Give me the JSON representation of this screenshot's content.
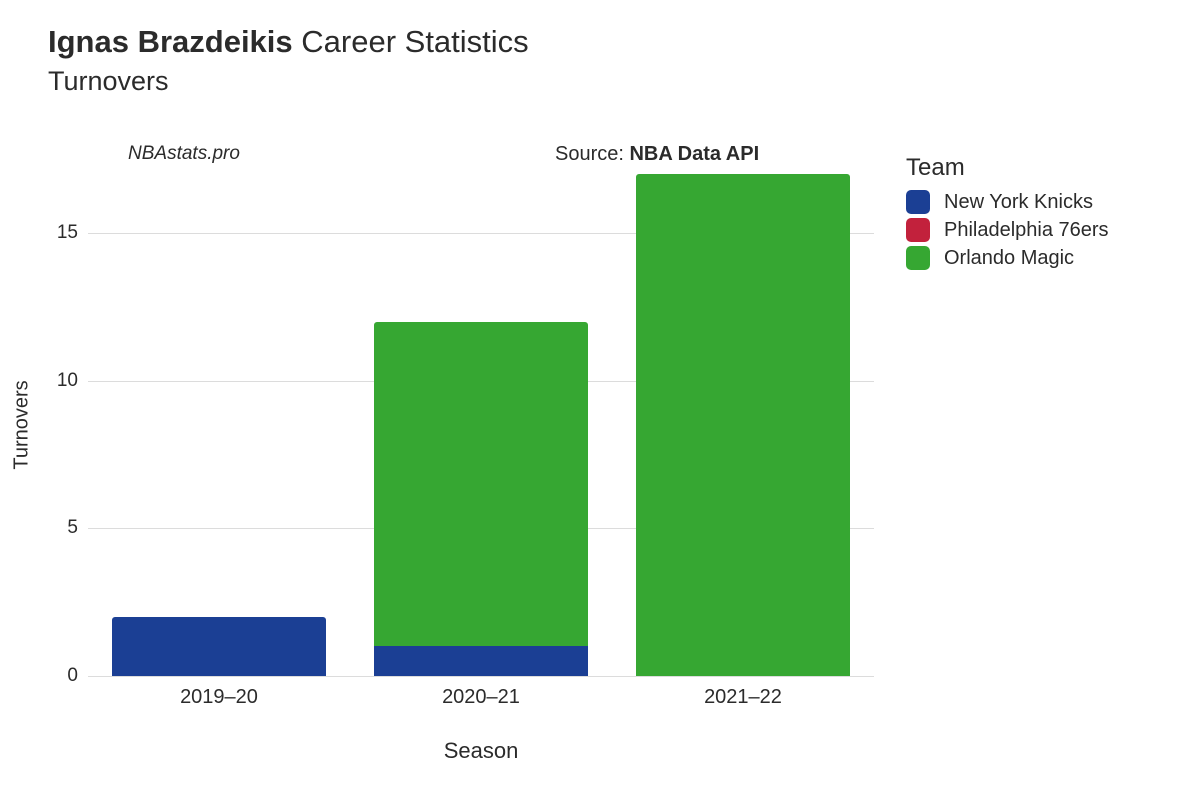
{
  "title": {
    "player_name": "Ignas Brazdeikis",
    "suffix": " Career Statistics",
    "metric": "Turnovers",
    "title_fontsize": 31,
    "subtitle_fontsize": 27
  },
  "attribution": {
    "watermark": "NBAstats.pro",
    "source_prefix": "Source: ",
    "source_name": "NBA Data API",
    "fontsize": 20
  },
  "chart": {
    "type": "stacked-bar",
    "background_color": "#ffffff",
    "grid_color": "#dcdcdc",
    "text_color": "#2b2b2b",
    "x_label": "Season",
    "y_label": "Turnovers",
    "axis_label_fontsize": 22,
    "tick_fontsize": 19,
    "ylim": [
      0,
      17
    ],
    "y_ticks": [
      0,
      5,
      10,
      15
    ],
    "bar_width": 0.82,
    "bar_corner_radius": 3,
    "categories": [
      "2019–20",
      "2020–21",
      "2021–22"
    ],
    "series": [
      {
        "name": "New York Knicks",
        "color": "#1b3f94",
        "values": [
          2,
          1,
          0
        ]
      },
      {
        "name": "Philadelphia 76ers",
        "color": "#c2213c",
        "values": [
          0,
          0,
          0
        ]
      },
      {
        "name": "Orlando Magic",
        "color": "#36a732",
        "values": [
          0,
          11,
          17
        ]
      }
    ]
  },
  "legend": {
    "title": "Team",
    "title_fontsize": 24,
    "item_fontsize": 20,
    "swatch_radius": 5
  }
}
